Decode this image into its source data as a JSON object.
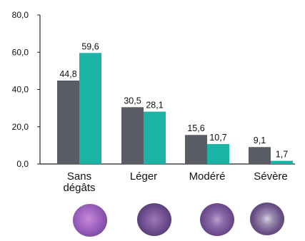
{
  "chart_data": {
    "type": "bar",
    "categories": [
      "Sans dégâts",
      "Léger",
      "Modéré",
      "Sévère"
    ],
    "category_lines": [
      [
        "Sans",
        "dégâts"
      ],
      [
        "Léger"
      ],
      [
        "Modéré"
      ],
      [
        "Sévère"
      ]
    ],
    "series": [
      {
        "values": [
          44.8,
          30.5,
          15.6,
          9.1
        ],
        "labels": [
          "44,8",
          "30,5",
          "15,6",
          "9,1"
        ],
        "color": "#5b5d66"
      },
      {
        "values": [
          59.6,
          28.1,
          10.7,
          1.7
        ],
        "labels": [
          "59,6",
          "28,1",
          "10,7",
          "1,7"
        ],
        "color": "#1ab3a6"
      }
    ],
    "yticks": [
      0,
      20,
      40,
      60,
      80
    ],
    "ytick_labels": [
      "0,0",
      "20,0",
      "40,0",
      "60,0",
      "80,0"
    ],
    "ylim": [
      0,
      80
    ],
    "title": "",
    "xlabel": "",
    "ylabel": "",
    "grid": false,
    "legend": "none"
  },
  "thumbnails": [
    {
      "icon": "fruit-photo-no-damage"
    },
    {
      "icon": "fruit-photo-light-damage"
    },
    {
      "icon": "fruit-photo-moderate-damage"
    },
    {
      "icon": "fruit-photo-severe-damage"
    }
  ]
}
